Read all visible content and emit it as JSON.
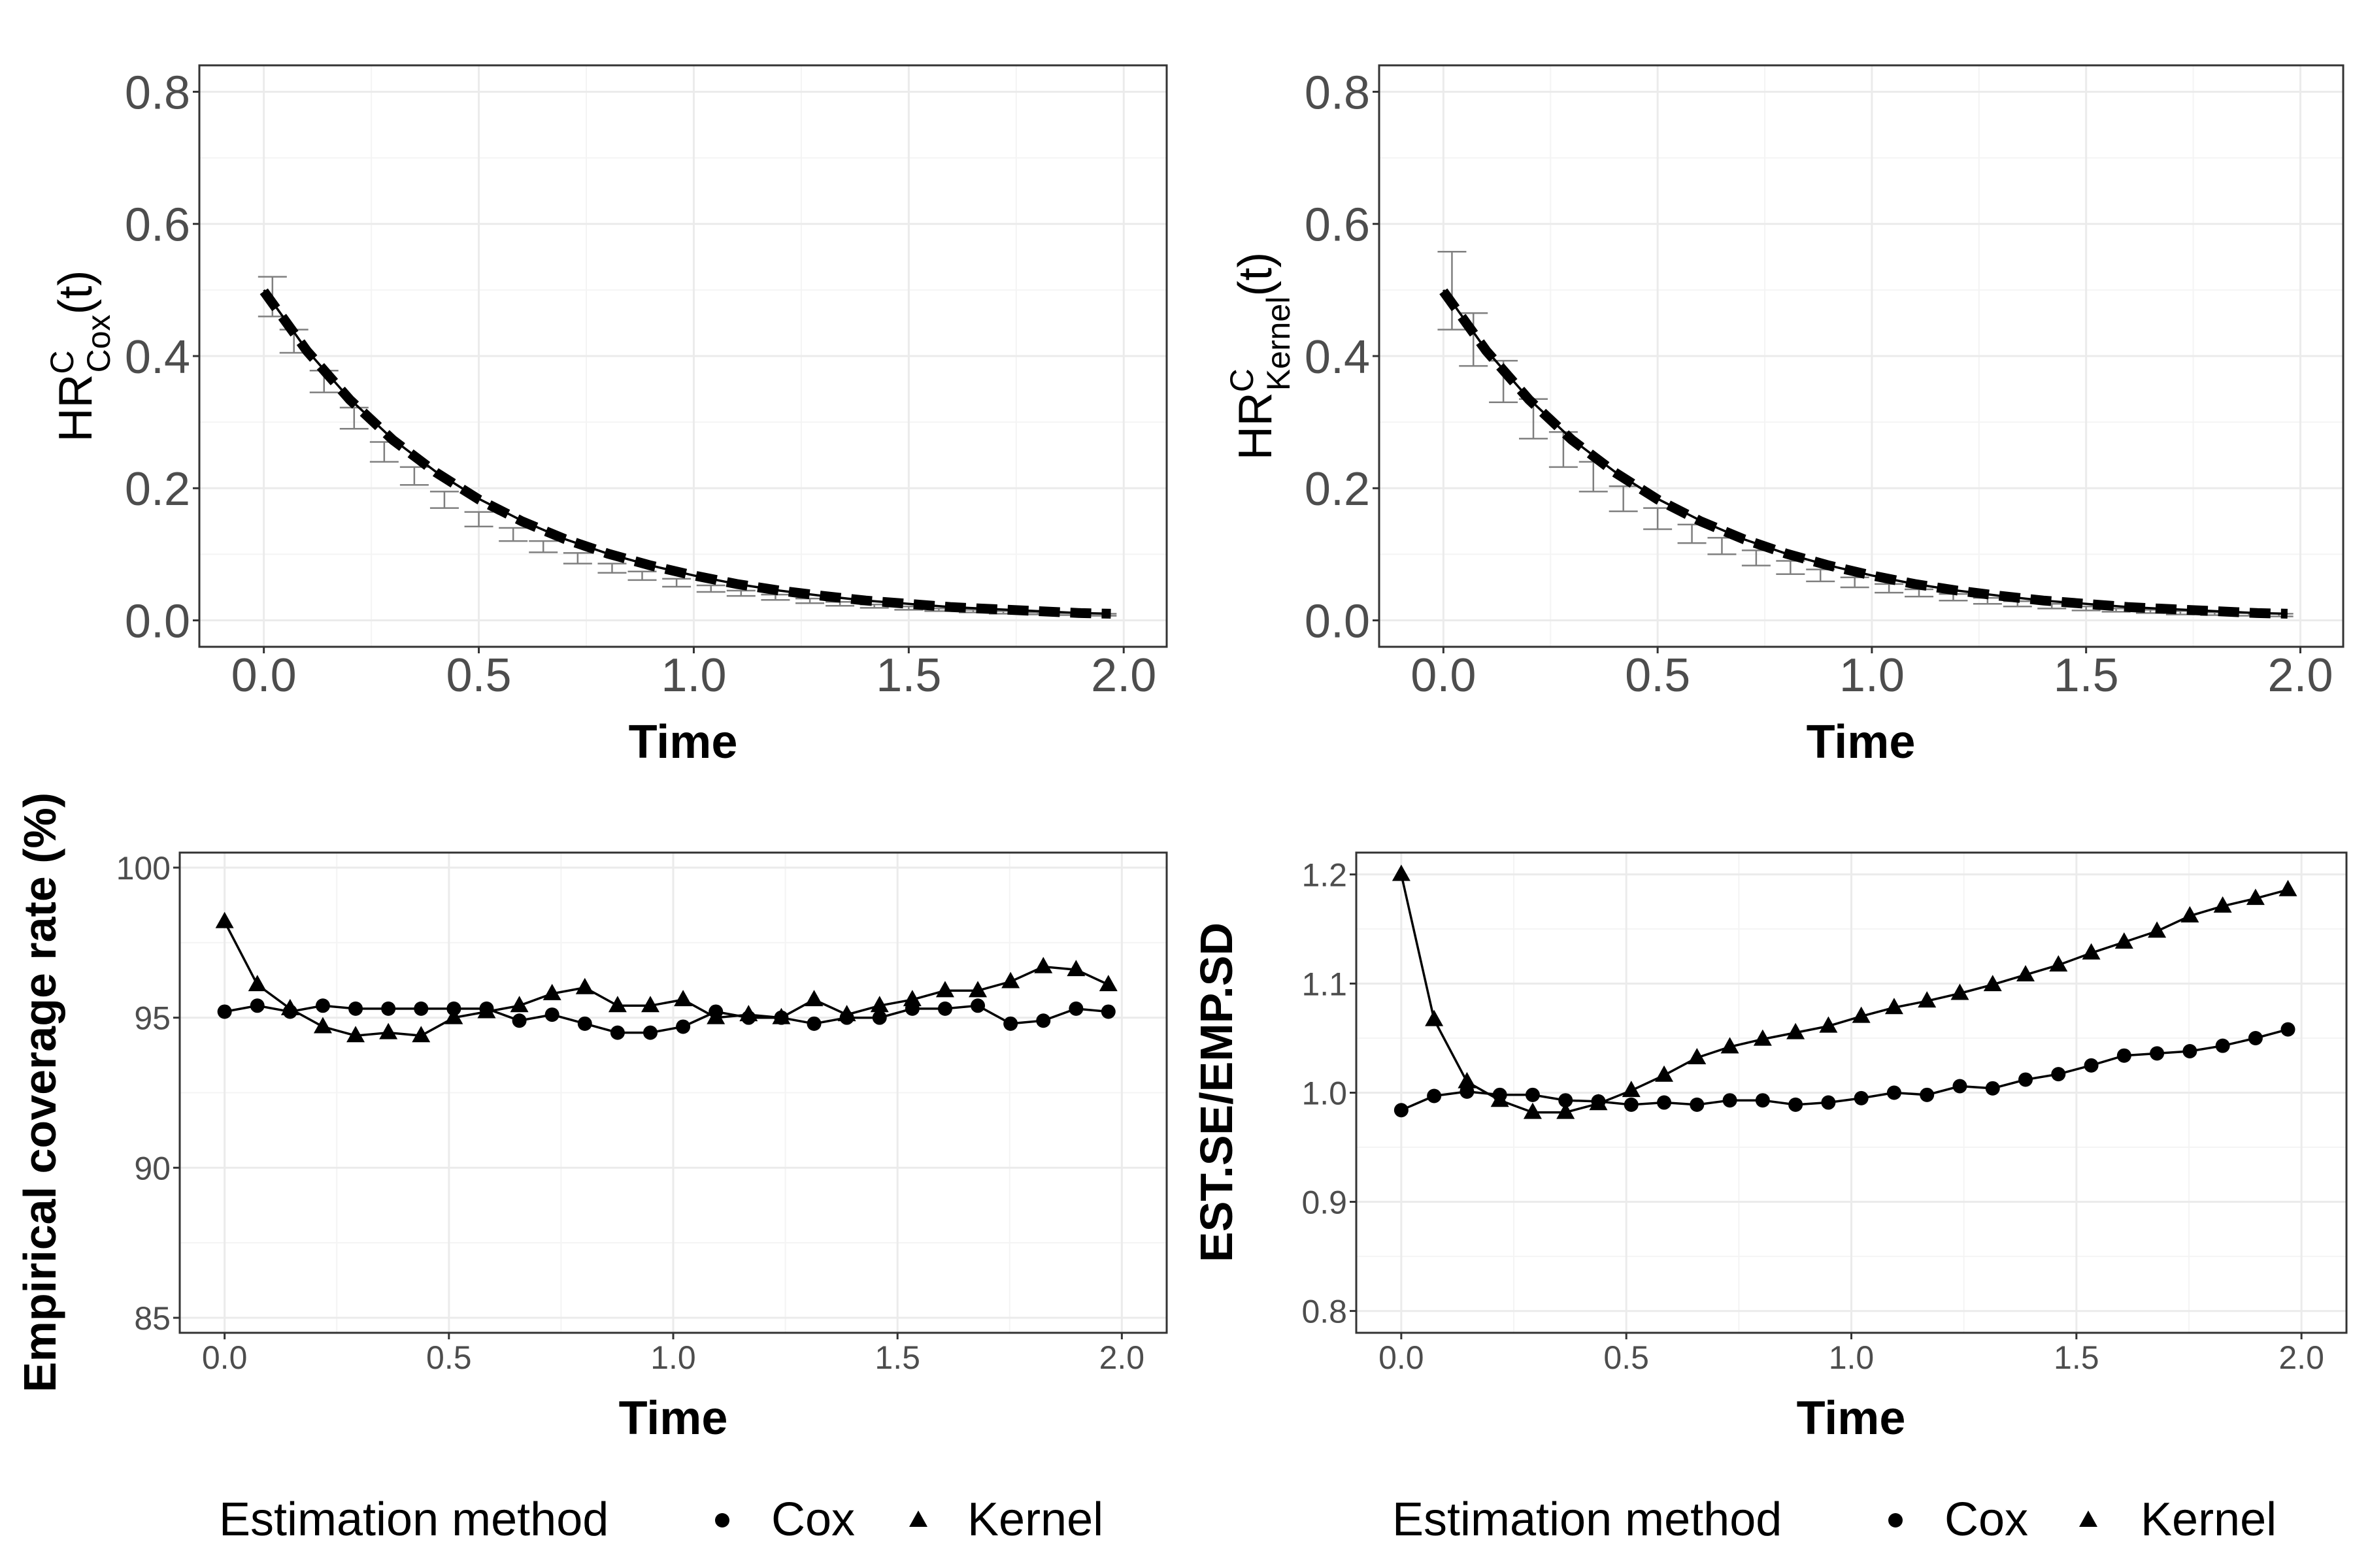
{
  "colors": {
    "major_grid": "#ebebeb",
    "minor_grid": "#f4f4f4",
    "panel_border": "#333333",
    "tick_label": "#4d4d4d",
    "errbar": "#7f7f7f",
    "ink": "#000000"
  },
  "chart_data": [
    {
      "id": "hr-cox",
      "type": "line",
      "xlabel": "Time",
      "ylabel": {
        "main": "HR",
        "sup": "C",
        "sub": "Cox",
        "tail": "(t)"
      },
      "xlim": [
        -0.15,
        2.1
      ],
      "ylim": [
        -0.04,
        0.84
      ],
      "xticks": [
        0,
        0.5,
        1,
        1.5,
        2
      ],
      "xtick_labels": [
        "0.0",
        "0.5",
        "1.0",
        "1.5",
        "2.0"
      ],
      "yticks": [
        0,
        0.2,
        0.4,
        0.6,
        0.8
      ],
      "ytick_labels": [
        "0.0",
        "0.2",
        "0.4",
        "0.6",
        "0.8"
      ],
      "true_curve": {
        "style": "solid",
        "x": [
          0.0,
          0.1,
          0.2,
          0.3,
          0.4,
          0.5,
          0.6,
          0.7,
          0.8,
          0.9,
          1.0,
          1.1,
          1.2,
          1.3,
          1.4,
          1.5,
          1.6,
          1.7,
          1.8,
          1.9,
          1.97
        ],
        "y": [
          0.5,
          0.409,
          0.335,
          0.274,
          0.225,
          0.184,
          0.151,
          0.123,
          0.101,
          0.083,
          0.068,
          0.055,
          0.045,
          0.037,
          0.03,
          0.025,
          0.02,
          0.017,
          0.014,
          0.011,
          0.01
        ]
      },
      "estimate": {
        "style": "dashed",
        "x": [
          0.0,
          0.1,
          0.2,
          0.3,
          0.4,
          0.5,
          0.6,
          0.7,
          0.8,
          0.9,
          1.0,
          1.1,
          1.2,
          1.3,
          1.4,
          1.5,
          1.6,
          1.7,
          1.8,
          1.9,
          1.97
        ],
        "y": [
          0.498,
          0.408,
          0.334,
          0.273,
          0.224,
          0.183,
          0.15,
          0.123,
          0.101,
          0.083,
          0.068,
          0.055,
          0.045,
          0.037,
          0.03,
          0.025,
          0.02,
          0.017,
          0.014,
          0.011,
          0.01
        ]
      },
      "error_bars": {
        "x": [
          0.02,
          0.07,
          0.14,
          0.21,
          0.28,
          0.35,
          0.42,
          0.5,
          0.58,
          0.65,
          0.73,
          0.81,
          0.88,
          0.96,
          1.04,
          1.11,
          1.19,
          1.27,
          1.34,
          1.42,
          1.5,
          1.57,
          1.65,
          1.72,
          1.8,
          1.88,
          1.95
        ],
        "low": [
          0.46,
          0.405,
          0.345,
          0.29,
          0.24,
          0.205,
          0.17,
          0.142,
          0.12,
          0.103,
          0.086,
          0.072,
          0.061,
          0.051,
          0.043,
          0.037,
          0.031,
          0.026,
          0.022,
          0.019,
          0.016,
          0.014,
          0.012,
          0.01,
          0.009,
          0.008,
          0.007
        ],
        "high": [
          0.52,
          0.44,
          0.378,
          0.322,
          0.27,
          0.232,
          0.195,
          0.164,
          0.14,
          0.12,
          0.102,
          0.086,
          0.074,
          0.063,
          0.053,
          0.045,
          0.039,
          0.033,
          0.028,
          0.024,
          0.021,
          0.018,
          0.016,
          0.014,
          0.012,
          0.011,
          0.01
        ]
      }
    },
    {
      "id": "hr-kernel",
      "type": "line",
      "xlabel": "Time",
      "ylabel": {
        "main": "HR",
        "sup": "C",
        "sub": "Kernel",
        "tail": "(t)"
      },
      "xlim": [
        -0.15,
        2.1
      ],
      "ylim": [
        -0.04,
        0.84
      ],
      "xticks": [
        0,
        0.5,
        1,
        1.5,
        2
      ],
      "xtick_labels": [
        "0.0",
        "0.5",
        "1.0",
        "1.5",
        "2.0"
      ],
      "yticks": [
        0,
        0.2,
        0.4,
        0.6,
        0.8
      ],
      "ytick_labels": [
        "0.0",
        "0.2",
        "0.4",
        "0.6",
        "0.8"
      ],
      "true_curve": {
        "style": "solid",
        "x": [
          0.0,
          0.1,
          0.2,
          0.3,
          0.4,
          0.5,
          0.6,
          0.7,
          0.8,
          0.9,
          1.0,
          1.1,
          1.2,
          1.3,
          1.4,
          1.5,
          1.6,
          1.7,
          1.8,
          1.9,
          1.97
        ],
        "y": [
          0.5,
          0.409,
          0.335,
          0.274,
          0.225,
          0.184,
          0.151,
          0.123,
          0.101,
          0.083,
          0.068,
          0.055,
          0.045,
          0.037,
          0.03,
          0.025,
          0.02,
          0.017,
          0.014,
          0.011,
          0.01
        ]
      },
      "estimate": {
        "style": "dashed",
        "x": [
          0.0,
          0.1,
          0.2,
          0.3,
          0.4,
          0.5,
          0.6,
          0.7,
          0.8,
          0.9,
          1.0,
          1.1,
          1.2,
          1.3,
          1.4,
          1.5,
          1.6,
          1.7,
          1.8,
          1.9,
          1.97
        ],
        "y": [
          0.498,
          0.408,
          0.334,
          0.273,
          0.224,
          0.183,
          0.15,
          0.123,
          0.101,
          0.083,
          0.068,
          0.055,
          0.045,
          0.037,
          0.03,
          0.025,
          0.02,
          0.017,
          0.014,
          0.011,
          0.01
        ]
      },
      "error_bars": {
        "x": [
          0.02,
          0.07,
          0.14,
          0.21,
          0.28,
          0.35,
          0.42,
          0.5,
          0.58,
          0.65,
          0.73,
          0.81,
          0.88,
          0.96,
          1.04,
          1.11,
          1.19,
          1.27,
          1.34,
          1.42,
          1.5,
          1.57,
          1.65,
          1.72,
          1.8,
          1.88,
          1.95
        ],
        "low": [
          0.44,
          0.385,
          0.33,
          0.275,
          0.232,
          0.195,
          0.165,
          0.138,
          0.117,
          0.1,
          0.083,
          0.07,
          0.059,
          0.05,
          0.042,
          0.036,
          0.03,
          0.025,
          0.021,
          0.018,
          0.015,
          0.013,
          0.011,
          0.009,
          0.008,
          0.007,
          0.006
        ],
        "high": [
          0.558,
          0.465,
          0.393,
          0.335,
          0.285,
          0.24,
          0.203,
          0.17,
          0.145,
          0.125,
          0.106,
          0.09,
          0.077,
          0.065,
          0.055,
          0.047,
          0.04,
          0.034,
          0.029,
          0.025,
          0.021,
          0.018,
          0.016,
          0.014,
          0.012,
          0.011,
          0.01
        ]
      }
    },
    {
      "id": "coverage",
      "type": "line",
      "xlabel": "Time",
      "ylabel": {
        "text": "Empirical coverage rate (%)"
      },
      "xlim": [
        -0.1,
        2.1
      ],
      "ylim": [
        84.5,
        100.5
      ],
      "xticks": [
        0,
        0.5,
        1,
        1.5,
        2
      ],
      "xtick_labels": [
        "0.0",
        "0.5",
        "1.0",
        "1.5",
        "2.0"
      ],
      "yticks": [
        85,
        90,
        95,
        100
      ],
      "ytick_labels": [
        "85",
        "90",
        "95",
        "100"
      ],
      "x": [
        0.0,
        0.073,
        0.146,
        0.219,
        0.292,
        0.365,
        0.438,
        0.511,
        0.584,
        0.657,
        0.73,
        0.803,
        0.876,
        0.949,
        1.022,
        1.095,
        1.168,
        1.241,
        1.314,
        1.387,
        1.46,
        1.533,
        1.606,
        1.679,
        1.752,
        1.825,
        1.898,
        1.97
      ],
      "series": [
        {
          "name": "Cox",
          "marker": "circle",
          "values": [
            95.2,
            95.4,
            95.2,
            95.4,
            95.3,
            95.3,
            95.3,
            95.3,
            95.3,
            94.9,
            95.1,
            94.8,
            94.5,
            94.5,
            94.7,
            95.2,
            95.0,
            95.0,
            94.8,
            95.0,
            95.0,
            95.3,
            95.3,
            95.4,
            94.8,
            94.9,
            95.3,
            95.2
          ]
        },
        {
          "name": "Kernel",
          "marker": "triangle",
          "values": [
            98.2,
            96.1,
            95.3,
            94.7,
            94.4,
            94.5,
            94.4,
            95.0,
            95.2,
            95.4,
            95.8,
            96.0,
            95.4,
            95.4,
            95.6,
            95.0,
            95.1,
            95.0,
            95.6,
            95.1,
            95.4,
            95.6,
            95.9,
            95.9,
            96.2,
            96.7,
            96.6,
            96.1
          ]
        }
      ]
    },
    {
      "id": "se-ratio",
      "type": "line",
      "xlabel": "Time",
      "ylabel": {
        "text": "EST.SE/EMP.SD"
      },
      "xlim": [
        -0.1,
        2.1
      ],
      "ylim": [
        0.78,
        1.22
      ],
      "xticks": [
        0,
        0.5,
        1,
        1.5,
        2
      ],
      "xtick_labels": [
        "0.0",
        "0.5",
        "1.0",
        "1.5",
        "2.0"
      ],
      "yticks": [
        0.8,
        0.9,
        1.0,
        1.1,
        1.2
      ],
      "ytick_labels": [
        "0.8",
        "0.9",
        "1.0",
        "1.1",
        "1.2"
      ],
      "x": [
        0.0,
        0.073,
        0.146,
        0.219,
        0.292,
        0.365,
        0.438,
        0.511,
        0.584,
        0.657,
        0.73,
        0.803,
        0.876,
        0.949,
        1.022,
        1.095,
        1.168,
        1.241,
        1.314,
        1.387,
        1.46,
        1.533,
        1.606,
        1.679,
        1.752,
        1.825,
        1.898,
        1.97
      ],
      "series": [
        {
          "name": "Cox",
          "marker": "circle",
          "values": [
            0.984,
            0.997,
            1.001,
            0.998,
            0.998,
            0.993,
            0.992,
            0.989,
            0.991,
            0.989,
            0.993,
            0.993,
            0.989,
            0.991,
            0.995,
            1.0,
            0.998,
            1.006,
            1.004,
            1.012,
            1.017,
            1.025,
            1.034,
            1.036,
            1.038,
            1.043,
            1.05,
            1.058
          ]
        },
        {
          "name": "Kernel",
          "marker": "triangle",
          "values": [
            1.2,
            1.067,
            1.01,
            0.993,
            0.982,
            0.982,
            0.99,
            1.002,
            1.016,
            1.032,
            1.042,
            1.049,
            1.055,
            1.061,
            1.07,
            1.078,
            1.084,
            1.091,
            1.099,
            1.108,
            1.117,
            1.128,
            1.138,
            1.148,
            1.162,
            1.171,
            1.178,
            1.186
          ]
        }
      ]
    }
  ],
  "legends": [
    {
      "title": "Estimation method",
      "items": [
        {
          "label": "Cox",
          "marker": "circle"
        },
        {
          "label": "Kernel",
          "marker": "triangle"
        }
      ]
    },
    {
      "title": "Estimation method",
      "items": [
        {
          "label": "Cox",
          "marker": "circle"
        },
        {
          "label": "Kernel",
          "marker": "triangle"
        }
      ]
    }
  ]
}
